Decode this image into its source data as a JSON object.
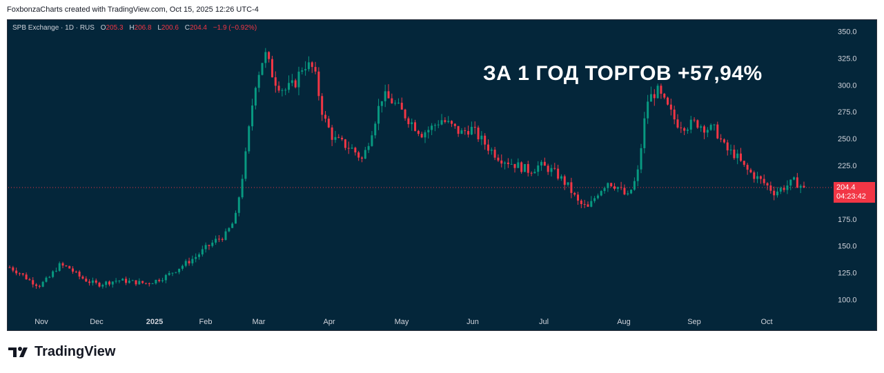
{
  "attribution": "FoxbonzaCharts created with TradingView.com, Oct 15, 2025 12:26 UTC-4",
  "legend": {
    "symbol": "SPB Exchange · 1D · RUS",
    "open_label": "O",
    "open": "205.3",
    "high_label": "H",
    "high": "206.8",
    "low_label": "L",
    "low": "200.6",
    "close_label": "C",
    "close": "204.4",
    "change": "−1.9 (−0.92%)"
  },
  "headline": "ЗА 1 ГОД ТОРГОВ +57,94%",
  "price_tag": {
    "price": "204.4",
    "timer": "04:23:42"
  },
  "brand": "TradingView",
  "colors": {
    "up": "#089981",
    "down": "#f23645",
    "background": "#04263a",
    "axis_text": "#d1d4dc"
  },
  "chart_data": {
    "type": "line",
    "title": "",
    "xlabel": "",
    "ylabel": "",
    "ylim": [
      90,
      360
    ],
    "y_ticks": [
      "350.0",
      "325.0",
      "300.0",
      "275.0",
      "250.0",
      "225.0",
      "200.0",
      "175.0",
      "150.0",
      "125.0",
      "100.0"
    ],
    "x_ticks": [
      "Nov",
      "Dec",
      "2025",
      "Feb",
      "Mar",
      "Apr",
      "May",
      "Jun",
      "Jul",
      "Aug",
      "Sep",
      "Oct"
    ],
    "grid": false,
    "series": [
      {
        "values": [
          130,
          125,
          118,
          113,
          120,
          132,
          130,
          122,
          117,
          114,
          116,
          118,
          117,
          116,
          115,
          118,
          122,
          128,
          134,
          140,
          148,
          155,
          160,
          175,
          230,
          300,
          330,
          305,
          295,
          300,
          320,
          315,
          270,
          250,
          245,
          240,
          230,
          260,
          290,
          285,
          275,
          265,
          255,
          260,
          268,
          262,
          255,
          260,
          250,
          240,
          232,
          228,
          224,
          220,
          225,
          222,
          215,
          205,
          190,
          185,
          200,
          210,
          205,
          195,
          215,
          285,
          295,
          280,
          265,
          262,
          265,
          260,
          258,
          240,
          235,
          222,
          215,
          208,
          200,
          205,
          210,
          204.4
        ]
      }
    ],
    "last_close": 204.4
  }
}
